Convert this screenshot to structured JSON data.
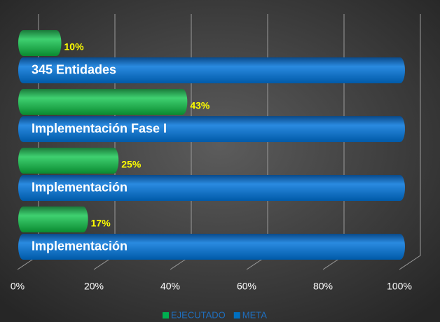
{
  "chart_data": {
    "type": "bar",
    "orientation": "horizontal",
    "categories": [
      "345 Entidades",
      "Implementación Fase I",
      "Implementación",
      "Implementación"
    ],
    "series": [
      {
        "name": "EJECUTADO",
        "color": "#00b050",
        "values": [
          10,
          43,
          25,
          17
        ],
        "value_labels": [
          "10%",
          "43%",
          "25%",
          "17%"
        ]
      },
      {
        "name": "META",
        "color": "#0070c0",
        "values": [
          100,
          100,
          100,
          100
        ]
      }
    ],
    "xlim": [
      0,
      100
    ],
    "xticks": [
      {
        "value": 0,
        "label": "0%"
      },
      {
        "value": 20,
        "label": "20%"
      },
      {
        "value": 40,
        "label": "40%"
      },
      {
        "value": 60,
        "label": "60%"
      },
      {
        "value": 80,
        "label": "80%"
      },
      {
        "value": 100,
        "label": "100%"
      }
    ],
    "grid": true,
    "legend": "bottom"
  }
}
